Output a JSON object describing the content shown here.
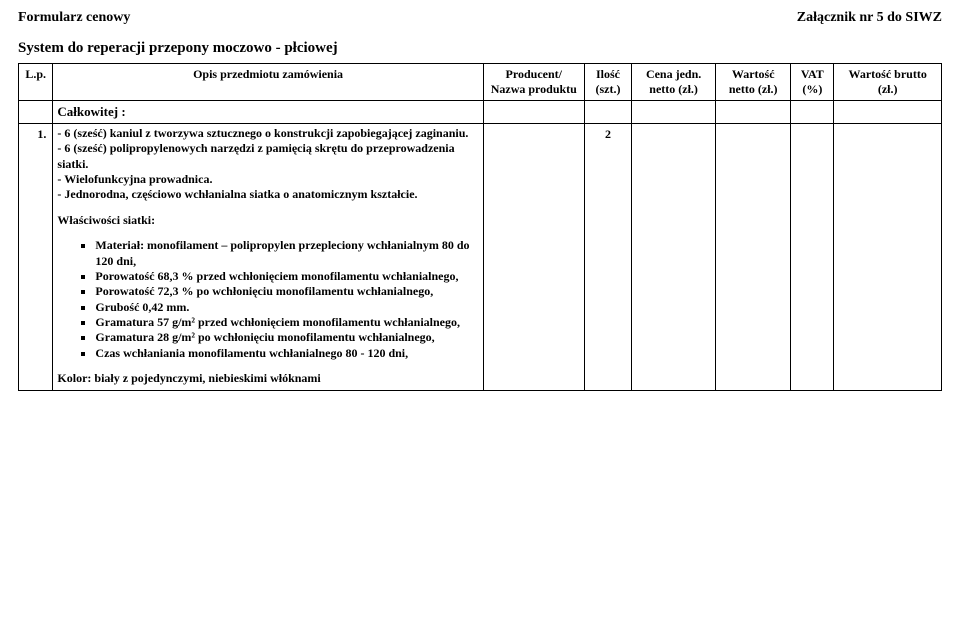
{
  "header": {
    "left": "Formularz cenowy",
    "right": "Załącznik nr 5 do SIWZ"
  },
  "title": "System do reperacji przepony moczowo - płciowej",
  "columns": {
    "lp": "L.p.",
    "desc": "Opis przedmiotu zamówienia",
    "prod": "Producent/ Nazwa produktu",
    "ilosc": "Ilość (szt.)",
    "cena": "Cena jedn. netto (zł.)",
    "wnet": "Wartość netto (zł.)",
    "vat": "VAT (%)",
    "wbr": "Wartość brutto (zł.)"
  },
  "rows": {
    "totalLabel": "Całkowitej :",
    "r1": {
      "lp": "1.",
      "ilosc": "2",
      "p1": "- 6 (sześć) kaniul z tworzywa sztucznego o konstrukcji zapobiegającej zaginaniu.",
      "p2": "- 6 (sześć) polipropylenowych narzędzi z pamięcią skrętu do przeprowadzenia siatki.",
      "p3": "- Wielofunkcyjna prowadnica.",
      "p4": "- Jednorodna, częściowo wchłanialna siatka o anatomicznym kształcie.",
      "sub1_title": "Właściwości siatki:",
      "b1": "Materiał: monofilament – polipropylen przepleciony wchłanialnym 80 do 120 dni,",
      "b2": "Porowatość  68,3 % przed wchłonięciem monofilamentu wchłanialnego,",
      "b3": "Porowatość  72,3 % po wchłonięciu monofilamentu wchłanialnego,",
      "b4": "Grubość 0,42 mm.",
      "b5": "Gramatura 57 g/m² przed wchłonięciem monofilamentu wchłanialnego,",
      "b6": "Gramatura 28 g/m² po wchłonięciu monofilamentu wchłanialnego,",
      "b7": "Czas wchłaniania monofilamentu wchłanialnego 80 - 120 dni,",
      "sub2": "Kolor: biały z pojedynczymi, niebieskimi włóknami"
    }
  }
}
